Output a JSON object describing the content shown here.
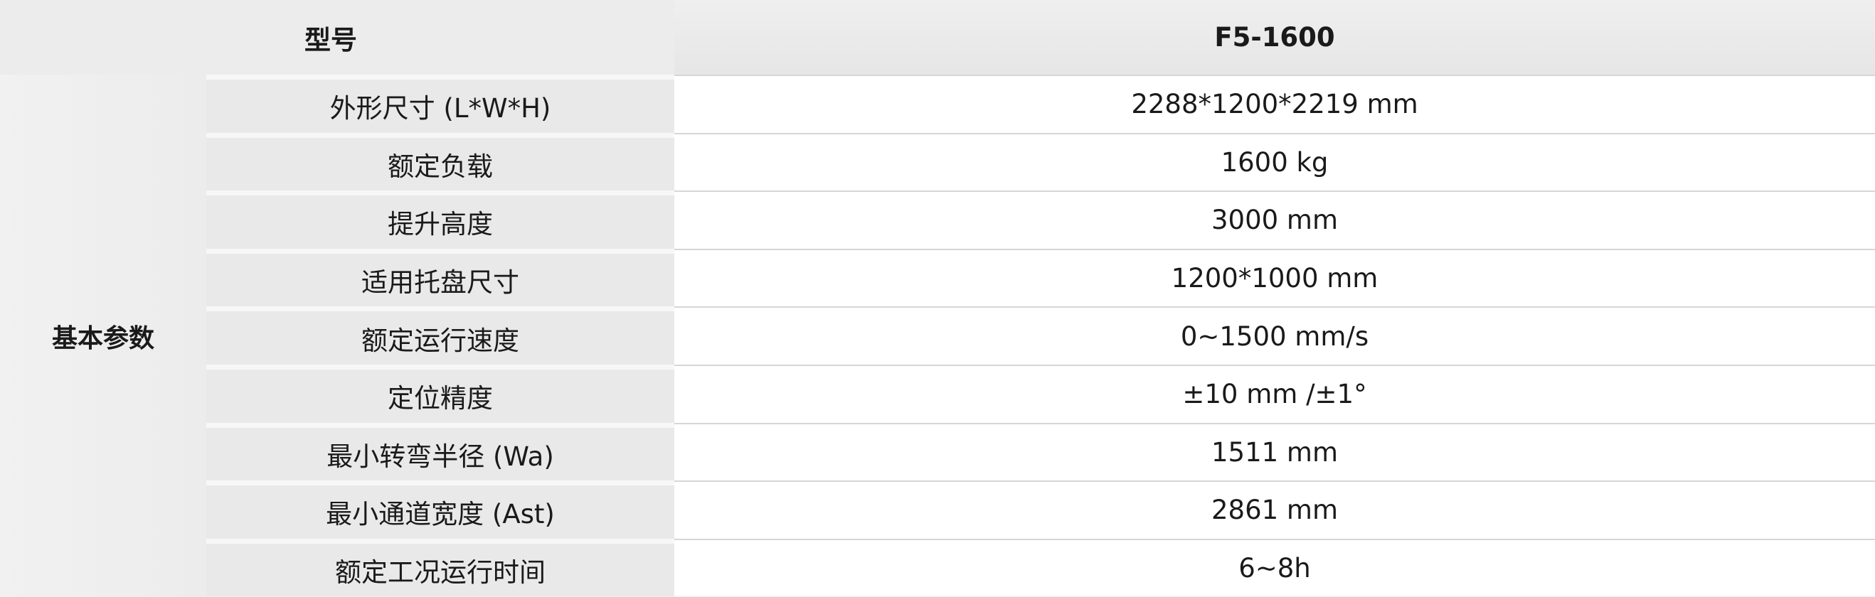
{
  "header": {
    "label": "型号",
    "value": "F5-1600"
  },
  "group_label": "基本参数",
  "rows": [
    {
      "label": "外形尺寸 (L*W*H)",
      "value": "2288*1200*2219 mm"
    },
    {
      "label": "额定负载",
      "value": "1600 kg"
    },
    {
      "label": "提升高度",
      "value": "3000 mm"
    },
    {
      "label": "适用托盘尺寸",
      "value": "1200*1000 mm"
    },
    {
      "label": "额定运行速度",
      "value": "0~1500 mm/s"
    },
    {
      "label": "定位精度",
      "value": "±10 mm /±1°"
    },
    {
      "label": "最小转弯半径 (Wa)",
      "value": "1511 mm"
    },
    {
      "label": "最小通道宽度 (Ast)",
      "value": "2861 mm"
    },
    {
      "label": "额定工况运行时间",
      "value": "6~8h"
    }
  ]
}
